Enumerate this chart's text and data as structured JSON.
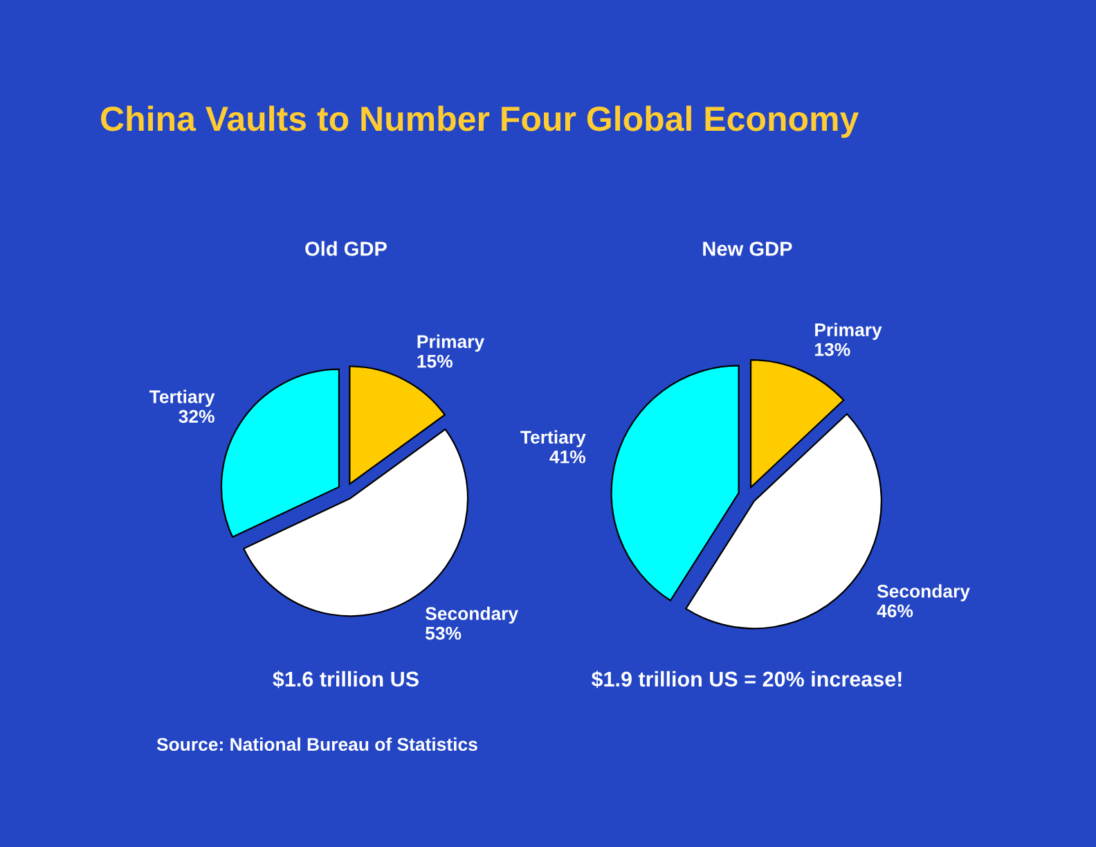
{
  "chart_data": [
    {
      "type": "pie",
      "title": "China Vaults to Number Four Global Economy",
      "subtitle": "Old GDP",
      "categories": [
        "Primary",
        "Secondary",
        "Tertiary"
      ],
      "values": [
        15,
        53,
        32
      ],
      "value_labels": [
        "15%",
        "53%",
        "32%"
      ],
      "colors": [
        "#ffcc00",
        "#ffffff",
        "#00ffff"
      ],
      "annotations": [
        "$1.6 trillion US",
        "Source: National Bureau of Statistics"
      ]
    },
    {
      "type": "pie",
      "subtitle": "New GDP",
      "categories": [
        "Primary",
        "Secondary",
        "Tertiary"
      ],
      "values": [
        13,
        46,
        41
      ],
      "value_labels": [
        "13%",
        "46%",
        "41%"
      ],
      "colors": [
        "#ffcc00",
        "#ffffff",
        "#00ffff"
      ],
      "annotations": [
        "$1.9 trillion US = 20% increase!"
      ]
    }
  ]
}
